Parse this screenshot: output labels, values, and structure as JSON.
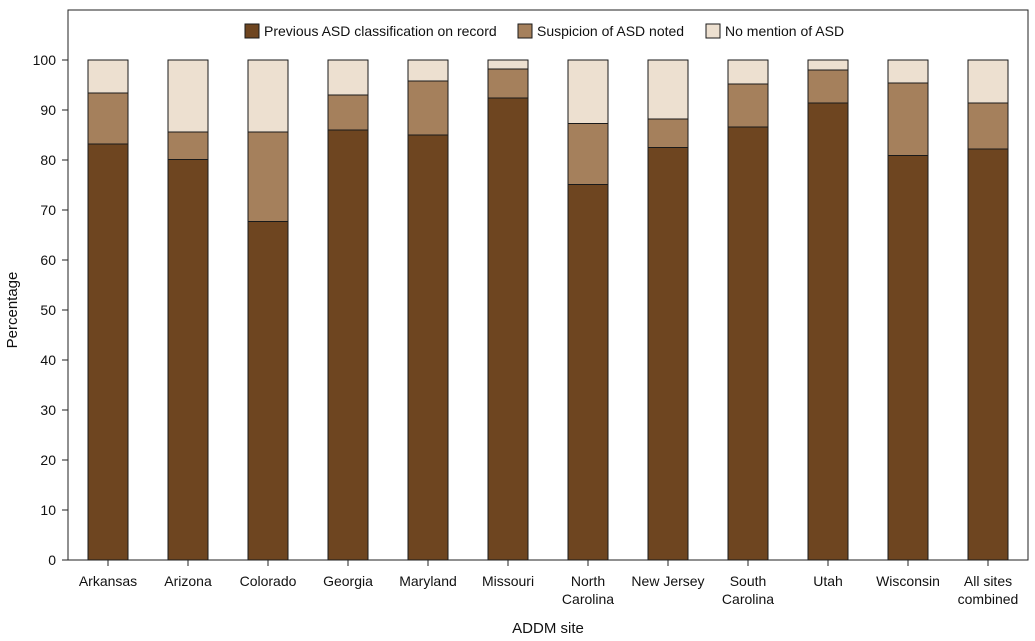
{
  "chart_data": {
    "type": "bar",
    "stacked": true,
    "title": "",
    "xlabel": "ADDM site",
    "ylabel": "Percentage",
    "ylim": [
      0,
      100
    ],
    "yticks": [
      0,
      10,
      20,
      30,
      40,
      50,
      60,
      70,
      80,
      90,
      100
    ],
    "grid": false,
    "legend_position": "top-center",
    "categories": [
      [
        "Arkansas"
      ],
      [
        "Arizona"
      ],
      [
        "Colorado"
      ],
      [
        "Georgia"
      ],
      [
        "Maryland"
      ],
      [
        "Missouri"
      ],
      [
        "North",
        "Carolina"
      ],
      [
        "New Jersey"
      ],
      [
        "South",
        "Carolina"
      ],
      [
        "Utah"
      ],
      [
        "Wisconsin"
      ],
      [
        "All sites",
        "combined"
      ]
    ],
    "series": [
      {
        "name": "Previous ASD classification on record",
        "color": "#6e4520",
        "values": [
          83.2,
          80.1,
          67.7,
          86.0,
          85.0,
          92.4,
          75.1,
          82.5,
          86.6,
          91.4,
          80.9,
          82.2
        ]
      },
      {
        "name": "Suspicion of ASD noted",
        "color": "#a5805c",
        "values": [
          10.2,
          5.5,
          17.9,
          7.0,
          10.8,
          5.8,
          12.2,
          5.7,
          8.6,
          6.6,
          14.5,
          9.2
        ]
      },
      {
        "name": "No mention of ASD",
        "color": "#ede0d0",
        "values": [
          6.6,
          14.4,
          14.4,
          7.0,
          4.2,
          1.8,
          12.7,
          11.8,
          4.8,
          2.0,
          4.6,
          8.6
        ]
      }
    ]
  }
}
